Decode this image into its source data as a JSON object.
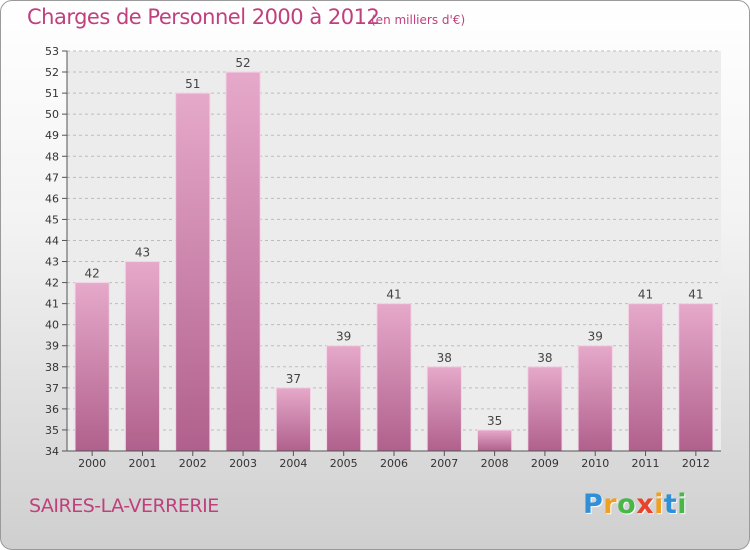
{
  "chart_data": {
    "type": "bar",
    "title": "Charges de Personnel 2000 à 2012",
    "unit_label": "(en milliers d'€)",
    "categories": [
      "2000",
      "2001",
      "2002",
      "2003",
      "2004",
      "2005",
      "2006",
      "2007",
      "2008",
      "2009",
      "2010",
      "2011",
      "2012"
    ],
    "values": [
      42,
      43,
      51,
      52,
      37,
      39,
      41,
      38,
      35,
      38,
      39,
      41,
      41
    ],
    "xlabel": "",
    "ylabel": "",
    "ylim": [
      34,
      53
    ],
    "yticks": [
      34,
      35,
      36,
      37,
      38,
      39,
      40,
      41,
      42,
      43,
      44,
      45,
      46,
      47,
      48,
      49,
      50,
      51,
      52,
      53
    ],
    "grid": true,
    "bar_color": "#c8689c"
  },
  "footer": {
    "place": "SAIRES-LA-VERRERIE",
    "logo_letters": [
      {
        "ch": "P",
        "color": "#2f8fd8"
      },
      {
        "ch": "r",
        "color": "#f0a020"
      },
      {
        "ch": "o",
        "color": "#49b648"
      },
      {
        "ch": "x",
        "color": "#e8412c"
      },
      {
        "ch": "i",
        "color": "#f0a020"
      },
      {
        "ch": "t",
        "color": "#2f8fd8"
      },
      {
        "ch": "i",
        "color": "#49b648"
      }
    ]
  },
  "colors": {
    "accent": "#c0407e",
    "axis": "#555555",
    "grid": "#bbbbbb"
  }
}
